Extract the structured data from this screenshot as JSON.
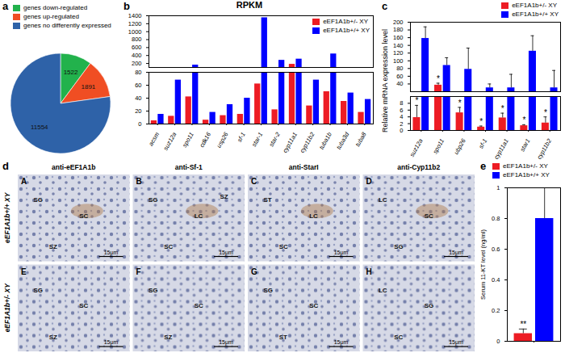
{
  "chart_data": [
    {
      "type": "pie",
      "panel_label": "a",
      "categories": [
        "genes down-regulated",
        "genes up-regulated",
        "genes no differently expressed"
      ],
      "values": [
        1522,
        1891,
        11554
      ],
      "colors": [
        "#22b24c",
        "#f04e23",
        "#2e62a8"
      ],
      "data_labels": true,
      "legend": "top"
    },
    {
      "type": "bar",
      "panel_label": "b",
      "title": "RPKM",
      "categories": [
        "acsm",
        "suz12a",
        "spo11",
        "cdk16",
        "usp26",
        "sf-1",
        "star-1",
        "star-2",
        "cyp11a1",
        "cyp11b2",
        "tuba1b",
        "tuba3d",
        "tuba8"
      ],
      "series": [
        {
          "name": "eEF1A1b+/- XY",
          "color": "#ed1c24",
          "values": [
            5,
            12,
            42,
            6,
            13,
            15,
            62,
            22,
            180,
            28,
            50,
            35,
            18
          ]
        },
        {
          "name": "eEF1A1b+/+ XY",
          "color": "#0000ff",
          "values": [
            15,
            68,
            160,
            18,
            30,
            40,
            1350,
            280,
            310,
            68,
            440,
            48,
            38
          ]
        }
      ],
      "ylim": [
        0,
        1400
      ],
      "y_break": [
        80,
        100
      ],
      "yticks": [
        0,
        20,
        40,
        60,
        80,
        200,
        400,
        600,
        800,
        1000,
        1200,
        1400
      ],
      "legend": "top-right"
    },
    {
      "type": "bar",
      "panel_label": "c",
      "ylabel": "Relative mRNA expression level",
      "categories": [
        "suz12a",
        "spo11",
        "ubp26",
        "sf-1",
        "cyp11a1",
        "star1",
        "cyp11b2"
      ],
      "series": [
        {
          "name": "eEF1A1b+/- XY",
          "color": "#ed1c24",
          "values": [
            3.8,
            37,
            5.2,
            1.0,
            3.7,
            1.4,
            2.2
          ],
          "errors": [
            3.6,
            5,
            1.6,
            0.3,
            1.4,
            0.3,
            1.8
          ],
          "significance": [
            "*",
            "*",
            "*",
            "*",
            "*",
            "*",
            "*"
          ]
        },
        {
          "name": "eEF1A1b+/+ XY",
          "color": "#0000ff",
          "values": [
            158,
            88,
            78,
            30,
            30,
            125,
            30
          ],
          "errors": [
            30,
            20,
            55,
            10,
            35,
            40,
            45
          ]
        }
      ],
      "ylim": [
        0,
        200
      ],
      "y_break": [
        10,
        20
      ],
      "yticks": [
        0,
        2,
        4,
        6,
        8,
        40,
        60,
        80,
        100,
        120,
        140,
        160,
        180,
        200
      ],
      "legend": "top-right"
    },
    {
      "type": "bar",
      "panel_label": "e",
      "ylabel": "Serum 11-KT level (ng/ml)",
      "categories": [
        null
      ],
      "series": [
        {
          "name": "eEF1A1b+/- XY",
          "color": "#ed1c24",
          "values": [
            0.05
          ],
          "errors": [
            0.03
          ],
          "significance": [
            "**"
          ]
        },
        {
          "name": "eEF1A1b+/+ XY",
          "color": "#0000ff",
          "values": [
            0.8
          ],
          "errors": [
            0.2
          ]
        }
      ],
      "ylim": [
        0,
        1
      ],
      "yticks": [
        0,
        0.2,
        0.4,
        0.6,
        0.8,
        1
      ],
      "legend": "top"
    }
  ],
  "panel_d": {
    "panel_label": "d",
    "columns": [
      "anti-eEF1A1b",
      "anti-Sf-1",
      "anti-StarI",
      "anti-Cyp11b2"
    ],
    "rows": [
      "eEF1A1b+/+ XY",
      "eEF1A1b+/- XY"
    ],
    "tiles": [
      {
        "letter": "A",
        "labels": [
          "SG",
          "SC",
          "SZ"
        ],
        "scale_bar": "15μm"
      },
      {
        "letter": "B",
        "labels": [
          "SG",
          "LC",
          "SC",
          "SZ"
        ],
        "scale_bar": "15μm"
      },
      {
        "letter": "C",
        "labels": [
          "ST",
          "LC",
          "SC"
        ],
        "scale_bar": "15μm"
      },
      {
        "letter": "D",
        "labels": [
          "LC",
          "SC",
          "SG"
        ],
        "scale_bar": "15μm"
      },
      {
        "letter": "E",
        "labels": [
          "SG",
          "SC",
          "SZ"
        ],
        "scale_bar": "15μm"
      },
      {
        "letter": "F",
        "labels": [
          "SG",
          "SC",
          "SZ"
        ],
        "scale_bar": "15μm"
      },
      {
        "letter": "G",
        "labels": [
          "SG",
          "SC",
          "ST"
        ],
        "scale_bar": "15μm"
      },
      {
        "letter": "H",
        "labels": [
          "LC",
          "SG",
          "SC"
        ],
        "scale_bar": "15μm"
      }
    ]
  }
}
